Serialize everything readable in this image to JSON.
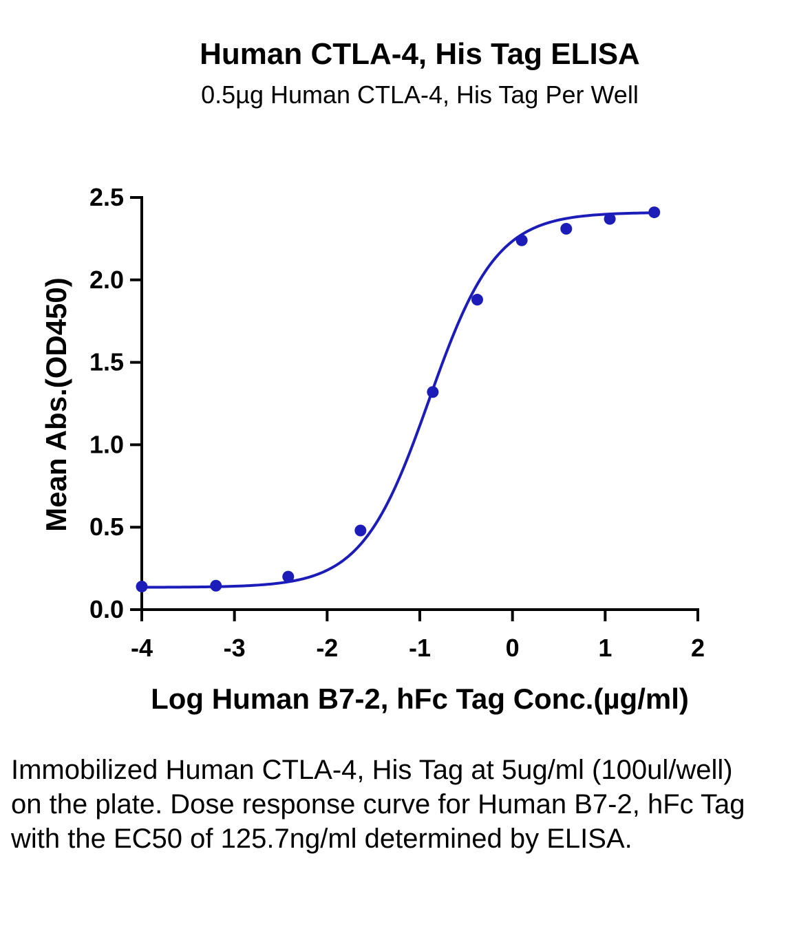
{
  "chart_data": {
    "type": "scatter",
    "title": "Human CTLA-4, His Tag ELISA",
    "subtitle": "0.5µg Human CTLA-4, His Tag Per Well",
    "xlabel": "Log Human B7-2, hFc Tag Conc.(µg/ml)",
    "ylabel": "Mean Abs.(OD450)",
    "xlim": [
      -4,
      2
    ],
    "ylim": [
      0,
      2.5
    ],
    "x_ticks": [
      "-4",
      "-3",
      "-2",
      "-1",
      "0",
      "1",
      "2"
    ],
    "y_ticks": [
      "0.0",
      "0.5",
      "1.0",
      "1.5",
      "2.0",
      "2.5"
    ],
    "grid": false,
    "series": [
      {
        "color": "#1c1cb8",
        "points": [
          {
            "x": -4.0,
            "y": 0.14
          },
          {
            "x": -3.2,
            "y": 0.145
          },
          {
            "x": -2.42,
            "y": 0.2
          },
          {
            "x": -1.64,
            "y": 0.48
          },
          {
            "x": -0.86,
            "y": 1.32
          },
          {
            "x": -0.38,
            "y": 1.88
          },
          {
            "x": 0.1,
            "y": 2.24
          },
          {
            "x": 0.58,
            "y": 2.31
          },
          {
            "x": 1.05,
            "y": 2.37
          },
          {
            "x": 1.53,
            "y": 2.41
          }
        ],
        "fit": {
          "bottom": 0.135,
          "top": 2.41,
          "log_ec50": -0.9,
          "hill_slope": 1.2
        }
      }
    ]
  },
  "caption": "Immobilized Human CTLA-4, His Tag at 5ug/ml (100ul/well) on the plate. Dose response curve for Human B7-2, hFc Tag with the EC50 of 125.7ng/ml determined by ELISA."
}
